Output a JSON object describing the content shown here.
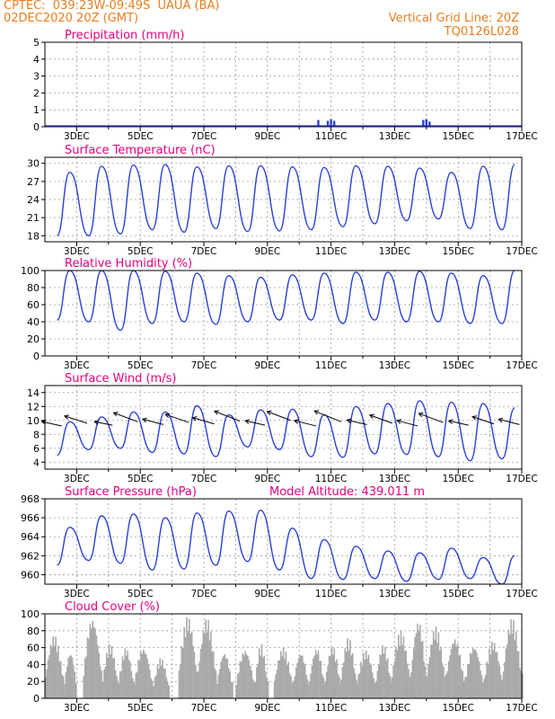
{
  "header": {
    "station": "CPTEC:  039:23W-09:49S  UAUA (BA)",
    "date": "02DEC2020 20Z (GMT)",
    "grid_note": "Vertical Grid Line: 20Z",
    "code": "TQ0126L028"
  },
  "colors": {
    "title": "#e6007e",
    "header": "#e87d1e",
    "line": "#2b3fd6",
    "bar": "#a9a9a9",
    "arrow": "#000000"
  },
  "x_axis": {
    "tick_labels": [
      "3DEC",
      "5DEC",
      "7DEC",
      "9DEC",
      "11DEC",
      "13DEC",
      "15DEC",
      "17DEC"
    ],
    "major_days": [
      3,
      5,
      7,
      9,
      11,
      13,
      15,
      17
    ],
    "minor_days": [
      4,
      6,
      8,
      10,
      12,
      14,
      16
    ],
    "range_days": [
      2,
      17
    ]
  },
  "model_altitude": "Model Altitude: 439.011 m",
  "chart_data": [
    {
      "id": "precip",
      "type": "bar",
      "title": "Precipitation (mm/h)",
      "ylim": [
        0,
        5
      ],
      "yticks": [
        "0",
        "1",
        "2",
        "3",
        "4",
        "5"
      ],
      "grid": true,
      "series": [
        {
          "x_day": [
            3.9,
            5.4,
            6.6,
            10.6,
            10.9,
            11.0,
            11.1,
            13.9,
            14.0,
            14.1
          ],
          "values": [
            0.05,
            0.05,
            0.05,
            0.4,
            0.35,
            0.45,
            0.35,
            0.4,
            0.45,
            0.3
          ]
        }
      ]
    },
    {
      "id": "temp",
      "type": "line",
      "title": "Surface Temperature (nC)",
      "ylim": [
        17,
        31
      ],
      "yticks": [
        "18",
        "21",
        "24",
        "27",
        "30"
      ],
      "grid": true,
      "series": [
        {
          "min": [
            18,
            18,
            18.3,
            19,
            18.6,
            19.2,
            18.7,
            18.8,
            19,
            19.5,
            20,
            20.5,
            20.8,
            19.2,
            19
          ],
          "max": [
            28.5,
            29.5,
            29.7,
            29.8,
            29.4,
            29.6,
            29.6,
            29.4,
            29.3,
            29.6,
            29.5,
            29.2,
            28.5,
            29.5,
            29.8
          ]
        }
      ]
    },
    {
      "id": "rh",
      "type": "line",
      "title": "Relative Humidity (%)",
      "ylim": [
        0,
        100
      ],
      "yticks": [
        "0",
        "20",
        "40",
        "60",
        "80",
        "100"
      ],
      "grid": true,
      "series": [
        {
          "min": [
            42,
            40,
            30,
            38,
            40,
            37,
            40,
            42,
            42,
            38,
            42,
            40,
            40,
            38,
            38
          ],
          "max": [
            100,
            100,
            100,
            99,
            97,
            94,
            92,
            95,
            97,
            98,
            98,
            99,
            97,
            94,
            100
          ]
        }
      ]
    },
    {
      "id": "wind",
      "type": "line",
      "title": "Surface Wind (m/s)",
      "ylim": [
        3,
        15
      ],
      "yticks": [
        "4",
        "6",
        "8",
        "10",
        "12",
        "14"
      ],
      "grid": true,
      "series": [
        {
          "min": [
            5,
            5.8,
            6,
            5.4,
            5.2,
            4.8,
            6.2,
            5.8,
            4.8,
            4.7,
            5.2,
            5.1,
            4.8,
            4.2,
            4.5
          ],
          "max": [
            9.8,
            10.5,
            11.2,
            11.2,
            12.1,
            10.8,
            11.5,
            11.6,
            10.8,
            12,
            12.4,
            12.8,
            12.6,
            12.4,
            11.8
          ]
        }
      ],
      "arrows": {
        "x_day": [
          2.3,
          3.1,
          3.9,
          4.7,
          5.5,
          6.3,
          7.1,
          7.9,
          8.7,
          9.5,
          10.3,
          11.1,
          11.9,
          12.7,
          13.5,
          14.3,
          15.1,
          15.9,
          16.7
        ],
        "speed": [
          9.2,
          9.6,
          9.3,
          9.8,
          9.4,
          9.7,
          9.5,
          9.9,
          9.3,
          10,
          9.2,
          9.8,
          9.4,
          9.6,
          9.2,
          9.7,
          9.3,
          9.5,
          9.4
        ],
        "dx": [
          -22,
          -25,
          -20,
          -27,
          -23,
          -26,
          -24,
          -28,
          -22,
          -26,
          -24,
          -30,
          -22,
          -25,
          -23,
          -27,
          -22,
          -24,
          -23
        ],
        "dy": [
          5,
          8,
          4,
          10,
          6,
          9,
          7,
          11,
          5,
          10,
          6,
          12,
          5,
          9,
          6,
          10,
          5,
          8,
          6
        ]
      }
    },
    {
      "id": "press",
      "type": "line",
      "title": "Surface Pressure (hPa)",
      "ylim": [
        959,
        968
      ],
      "yticks": [
        "960",
        "962",
        "964",
        "966",
        "968"
      ],
      "grid": true,
      "series": [
        {
          "min": [
            961,
            961.5,
            961.2,
            960.5,
            960.6,
            961,
            961.4,
            960.5,
            959.6,
            959.5,
            959.6,
            959.3,
            959.5,
            959.6,
            959
          ],
          "max": [
            965,
            966.2,
            966.4,
            966,
            966.5,
            966.7,
            966.8,
            964.9,
            963.7,
            963,
            962.5,
            962.3,
            962.8,
            961.8,
            962
          ]
        }
      ]
    },
    {
      "id": "cloud",
      "type": "bar",
      "title": "Cloud Cover (%)",
      "ylim": [
        0,
        100
      ],
      "yticks": [
        "0",
        "20",
        "40",
        "60",
        "80",
        "100"
      ],
      "grid": true,
      "segments_days": [
        [
          2.0,
          2.6
        ],
        [
          2.6,
          3.0
        ],
        [
          3.2,
          3.8
        ],
        [
          3.8,
          4.3
        ],
        [
          4.3,
          4.8
        ],
        [
          4.8,
          5.4
        ],
        [
          5.4,
          5.9
        ],
        [
          6.2,
          6.8
        ],
        [
          6.8,
          7.4
        ],
        [
          7.4,
          7.9
        ],
        [
          8.0,
          8.6
        ],
        [
          8.6,
          9.0
        ],
        [
          9.2,
          9.8
        ],
        [
          9.8,
          10.3
        ],
        [
          10.3,
          10.8
        ],
        [
          10.8,
          11.3
        ],
        [
          11.3,
          11.8
        ],
        [
          11.8,
          12.4
        ],
        [
          12.4,
          12.9
        ],
        [
          12.9,
          13.5
        ],
        [
          13.5,
          14.0
        ],
        [
          14.0,
          14.6
        ],
        [
          14.6,
          15.2
        ],
        [
          15.2,
          15.8
        ],
        [
          15.8,
          16.4
        ],
        [
          16.4,
          17.0
        ]
      ],
      "segment_peaks": [
        75,
        55,
        95,
        65,
        60,
        60,
        48,
        97,
        95,
        55,
        58,
        65,
        60,
        55,
        60,
        62,
        72,
        57,
        64,
        80,
        92,
        85,
        72,
        63,
        68,
        95
      ]
    }
  ]
}
